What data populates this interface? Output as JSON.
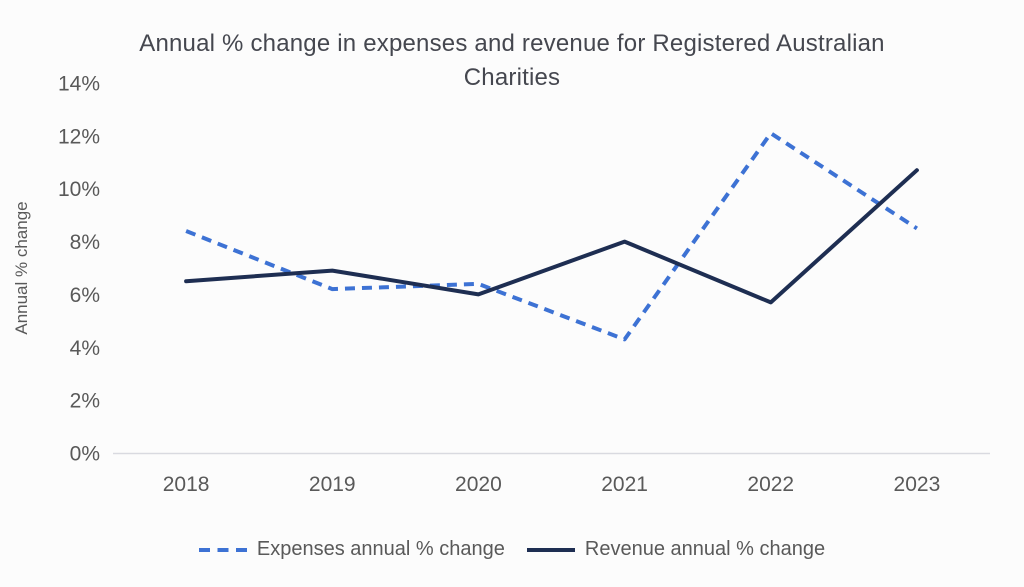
{
  "chart_data": {
    "type": "line",
    "title": "Annual % change in expenses and revenue for Registered Australian Charities",
    "categories": [
      "2018",
      "2019",
      "2020",
      "2021",
      "2022",
      "2023"
    ],
    "series": [
      {
        "name": "Expenses annual % change",
        "values": [
          8.4,
          6.2,
          6.4,
          4.3,
          12.1,
          8.5
        ],
        "color": "#3D72D4",
        "style": "dashed"
      },
      {
        "name": "Revenue annual % change",
        "values": [
          6.5,
          6.9,
          6.0,
          8.0,
          5.7,
          10.7
        ],
        "color": "#1E2E52",
        "style": "solid"
      }
    ],
    "xlabel": "",
    "ylabel": "Annual % change",
    "ylim": [
      0,
      14
    ],
    "ytick_step": 2,
    "ytick_suffix": "%",
    "grid": false,
    "legend_position": "bottom"
  },
  "colors": {
    "axis_line": "#d9dae0",
    "tick_text": "#595959",
    "title_text": "#45474f",
    "background": "#fcfcfc"
  }
}
